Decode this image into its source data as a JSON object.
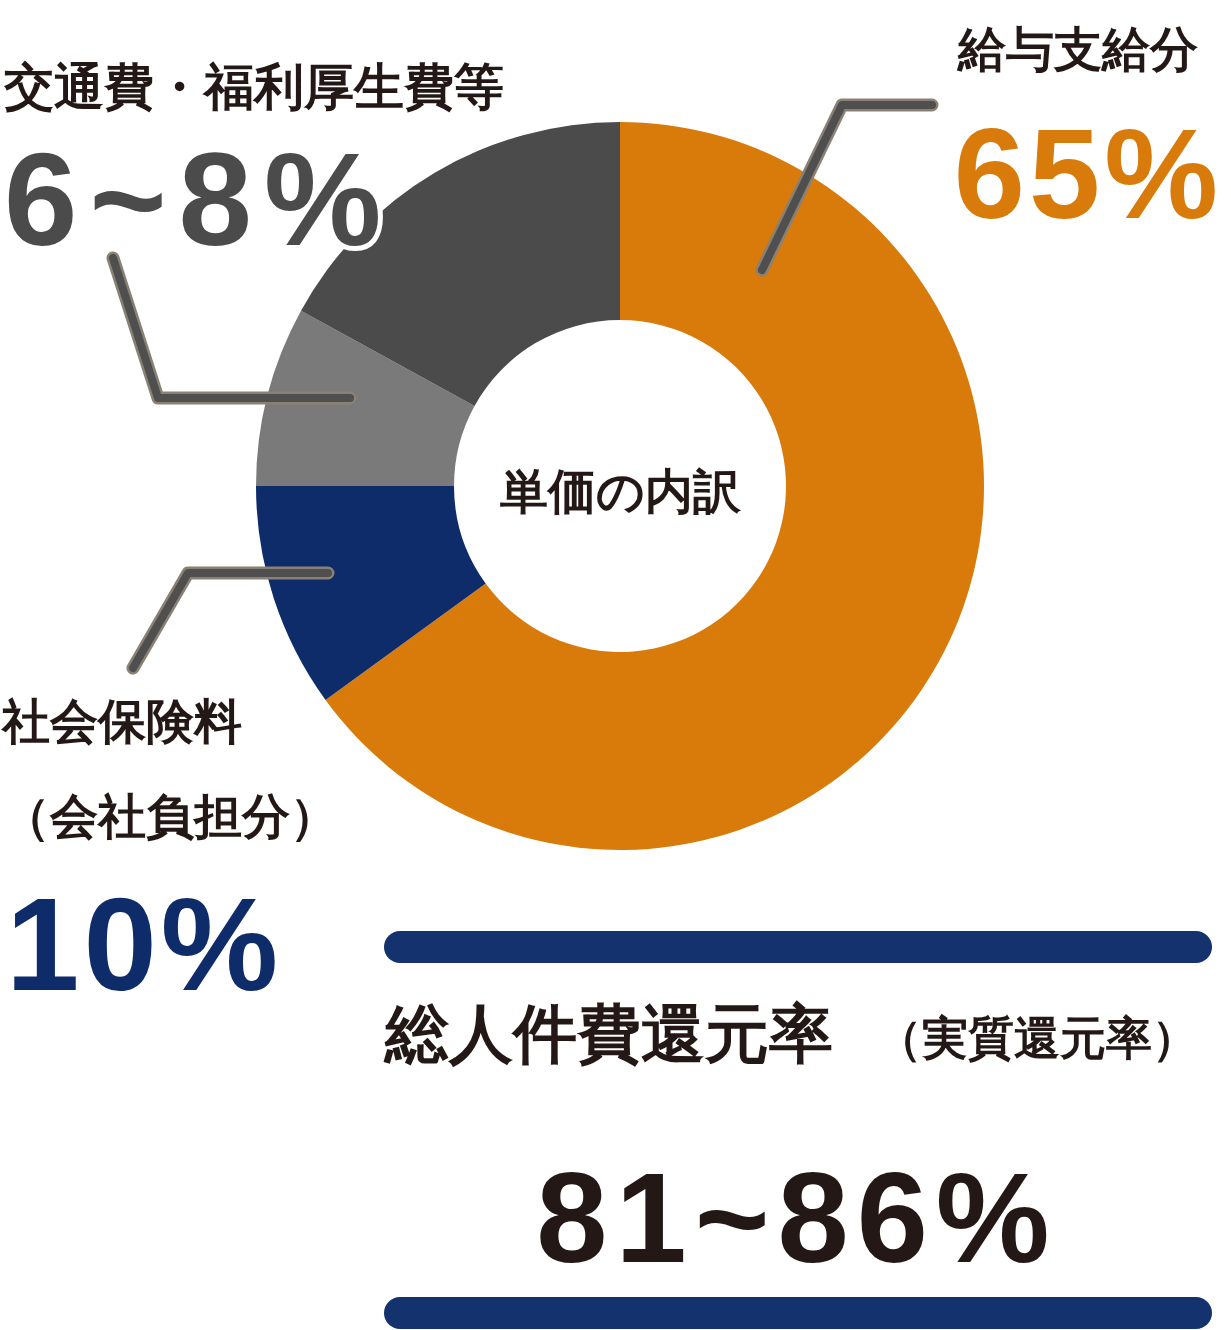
{
  "chart_data": {
    "type": "donut",
    "title": "単価の内訳",
    "categories": [
      "給与支給分",
      "社会保険料（会社負担分）",
      "交通費・福利厚生費等",
      null
    ],
    "values": [
      65,
      10,
      8,
      17
    ],
    "colors": [
      "#d97b0b",
      "#0f2c6a",
      "#7a7a7a",
      "#4b4b4b"
    ],
    "value_labels": [
      "65%",
      "10%",
      "6~8%",
      null
    ],
    "annotations": [
      "総人件費還元率",
      "（実質還元率）",
      "81~86%"
    ]
  }
}
